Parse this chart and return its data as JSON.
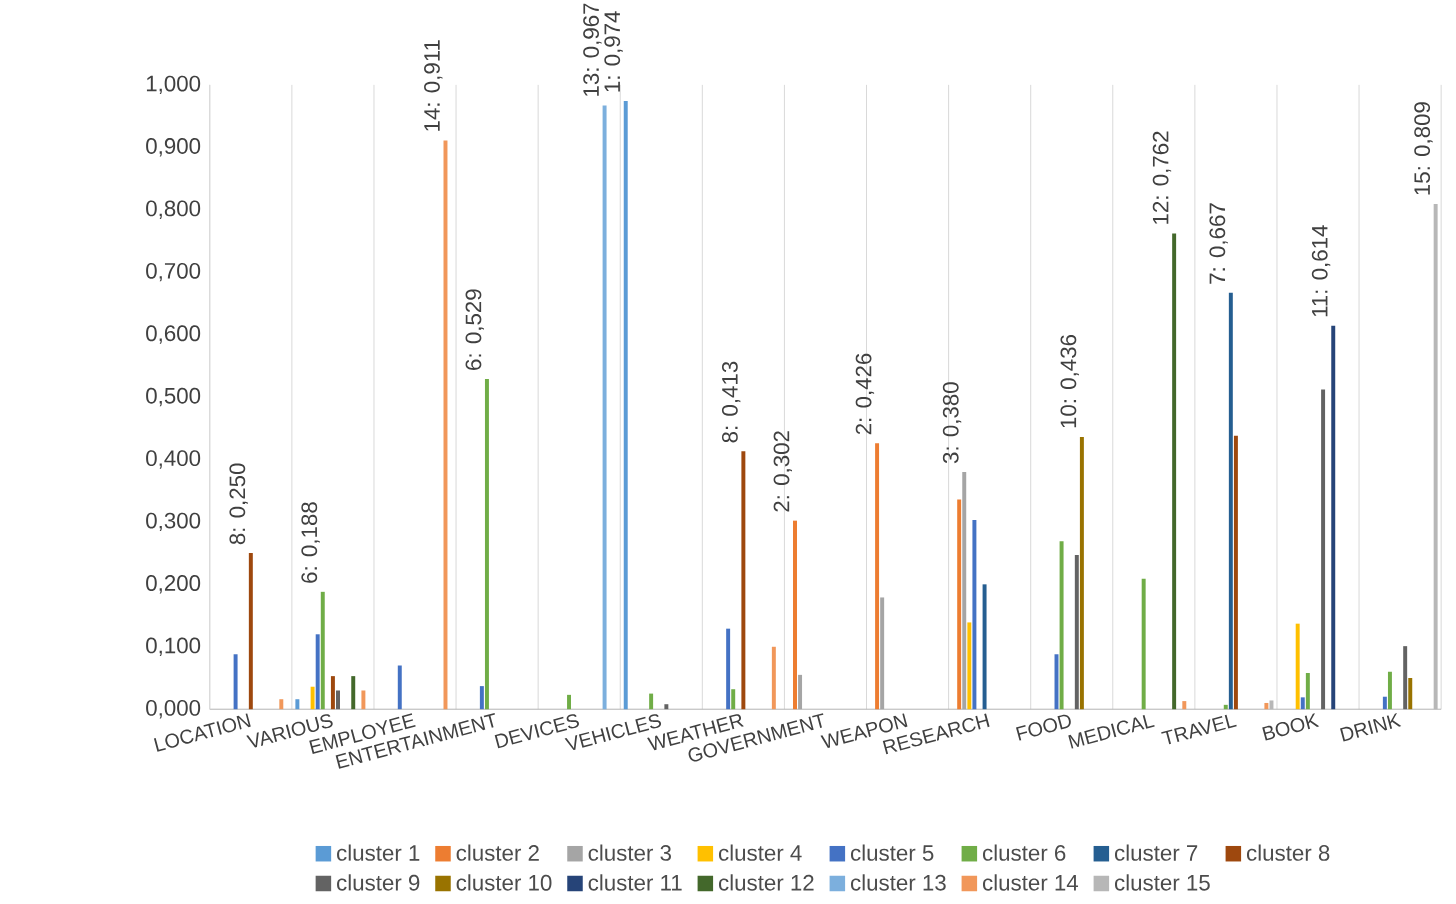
{
  "chart_data": {
    "type": "bar",
    "categories": [
      "LOCATION",
      "VARIOUS",
      "EMPLOYEE",
      "ENTERTAINMENT",
      "DEVICES",
      "VEHICLES",
      "WEATHER",
      "GOVERNMENT",
      "WEAPON",
      "RESEARCH",
      "FOOD",
      "MEDICAL",
      "TRAVEL",
      "BOOK",
      "DRINK"
    ],
    "ylim": [
      0,
      1
    ],
    "yticks": [
      {
        "value": 0,
        "label": "0,000"
      },
      {
        "value": 0.1,
        "label": "0,100"
      },
      {
        "value": 0.2,
        "label": "0,200"
      },
      {
        "value": 0.3,
        "label": "0,300"
      },
      {
        "value": 0.4,
        "label": "0,400"
      },
      {
        "value": 0.5,
        "label": "0,500"
      },
      {
        "value": 0.6,
        "label": "0,600"
      },
      {
        "value": 0.7,
        "label": "0,700"
      },
      {
        "value": 0.8,
        "label": "0,800"
      },
      {
        "value": 0.9,
        "label": "0,900"
      },
      {
        "value": 1,
        "label": "1,000"
      }
    ],
    "grid": "x",
    "legend": "bottom",
    "series": [
      {
        "name": "cluster 1",
        "color": "#5b9bd5",
        "values": [
          null,
          0.016,
          null,
          null,
          null,
          0.974,
          null,
          null,
          null,
          null,
          null,
          null,
          null,
          null,
          null
        ],
        "value_labels": [
          null,
          null,
          null,
          null,
          null,
          "1: 0,974",
          null,
          null,
          null,
          null,
          null,
          null,
          null,
          null,
          null
        ]
      },
      {
        "name": "cluster 2",
        "color": "#ed7d31",
        "values": [
          null,
          null,
          null,
          null,
          null,
          null,
          null,
          0.302,
          0.426,
          0.336,
          null,
          null,
          null,
          null,
          null
        ],
        "value_labels": [
          null,
          null,
          null,
          null,
          null,
          null,
          null,
          "2: 0,302",
          "2: 0,426",
          null,
          null,
          null,
          null,
          null,
          null
        ]
      },
      {
        "name": "cluster 3",
        "color": "#a5a5a5",
        "values": [
          null,
          null,
          null,
          null,
          null,
          null,
          null,
          0.055,
          0.179,
          0.38,
          null,
          null,
          null,
          null,
          null
        ],
        "value_labels": [
          null,
          null,
          null,
          null,
          null,
          null,
          null,
          null,
          null,
          "3: 0,380",
          null,
          null,
          null,
          null,
          null
        ]
      },
      {
        "name": "cluster 4",
        "color": "#ffc000",
        "values": [
          null,
          0.036,
          null,
          null,
          null,
          null,
          null,
          null,
          null,
          0.139,
          null,
          null,
          null,
          0.137,
          null
        ]
      },
      {
        "name": "cluster 5",
        "color": "#4472c4",
        "values": [
          0.088,
          0.12,
          0.07,
          0.037,
          null,
          null,
          0.129,
          null,
          null,
          0.303,
          0.088,
          null,
          null,
          0.019,
          0.02
        ]
      },
      {
        "name": "cluster 6",
        "color": "#70ad47",
        "values": [
          null,
          0.188,
          null,
          0.529,
          0.023,
          0.025,
          0.032,
          null,
          null,
          null,
          0.269,
          0.209,
          0.007,
          0.058,
          0.06
        ],
        "value_labels": [
          null,
          "6: 0,188",
          null,
          "6: 0,529",
          null,
          null,
          null,
          null,
          null,
          null,
          null,
          null,
          null,
          null,
          null
        ]
      },
      {
        "name": "cluster 7",
        "color": "#255e91",
        "values": [
          null,
          null,
          null,
          null,
          null,
          null,
          null,
          null,
          null,
          0.2,
          null,
          null,
          0.667,
          null,
          null
        ],
        "value_labels": [
          null,
          null,
          null,
          null,
          null,
          null,
          null,
          null,
          null,
          null,
          null,
          null,
          "7: 0,667",
          null,
          null
        ]
      },
      {
        "name": "cluster 8",
        "color": "#9e480e",
        "values": [
          0.25,
          0.053,
          null,
          null,
          null,
          null,
          0.413,
          null,
          null,
          null,
          null,
          null,
          0.438,
          null,
          null
        ],
        "value_labels": [
          "8: 0,250",
          null,
          null,
          null,
          null,
          null,
          "8: 0,413",
          null,
          null,
          null,
          null,
          null,
          null,
          null,
          null
        ]
      },
      {
        "name": "cluster 9",
        "color": "#636363",
        "values": [
          null,
          0.03,
          null,
          null,
          null,
          0.008,
          null,
          null,
          null,
          null,
          0.247,
          null,
          null,
          0.512,
          0.101
        ]
      },
      {
        "name": "cluster 10",
        "color": "#997300",
        "values": [
          null,
          null,
          null,
          null,
          null,
          null,
          null,
          null,
          null,
          null,
          0.436,
          null,
          null,
          null,
          0.05
        ],
        "value_labels": [
          null,
          null,
          null,
          null,
          null,
          null,
          null,
          null,
          null,
          null,
          "10: 0,436",
          null,
          null,
          null,
          null
        ]
      },
      {
        "name": "cluster 11",
        "color": "#264478",
        "values": [
          null,
          null,
          null,
          null,
          null,
          null,
          null,
          null,
          null,
          null,
          null,
          null,
          null,
          0.614,
          null
        ],
        "value_labels": [
          null,
          null,
          null,
          null,
          null,
          null,
          null,
          null,
          null,
          null,
          null,
          null,
          null,
          "11: 0,614",
          null
        ]
      },
      {
        "name": "cluster 12",
        "color": "#43682b",
        "values": [
          null,
          0.053,
          null,
          null,
          null,
          null,
          null,
          null,
          null,
          null,
          null,
          0.762,
          null,
          null,
          null
        ],
        "value_labels": [
          null,
          null,
          null,
          null,
          null,
          null,
          null,
          null,
          null,
          null,
          null,
          "12: 0,762",
          null,
          null,
          null
        ]
      },
      {
        "name": "cluster 13",
        "color": "#7cafdd",
        "values": [
          null,
          null,
          null,
          null,
          0.967,
          null,
          null,
          null,
          null,
          null,
          null,
          null,
          null,
          null,
          null
        ],
        "value_labels": [
          null,
          null,
          null,
          null,
          "13: 0,967",
          null,
          null,
          null,
          null,
          null,
          null,
          null,
          null,
          null,
          null
        ]
      },
      {
        "name": "cluster 14",
        "color": "#f1975a",
        "values": [
          0.016,
          0.03,
          0.911,
          null,
          null,
          null,
          0.1,
          null,
          null,
          null,
          null,
          0.013,
          0.01,
          null,
          null
        ],
        "value_labels": [
          null,
          null,
          "14: 0,911",
          null,
          null,
          null,
          null,
          null,
          null,
          null,
          null,
          null,
          null,
          null,
          null
        ]
      },
      {
        "name": "cluster 15",
        "color": "#b7b7b7",
        "values": [
          null,
          null,
          null,
          null,
          null,
          null,
          null,
          null,
          null,
          null,
          null,
          null,
          0.014,
          null,
          0.809
        ],
        "value_labels": [
          null,
          null,
          null,
          null,
          null,
          null,
          null,
          null,
          null,
          null,
          null,
          null,
          null,
          null,
          "15: 0,809"
        ]
      }
    ]
  }
}
